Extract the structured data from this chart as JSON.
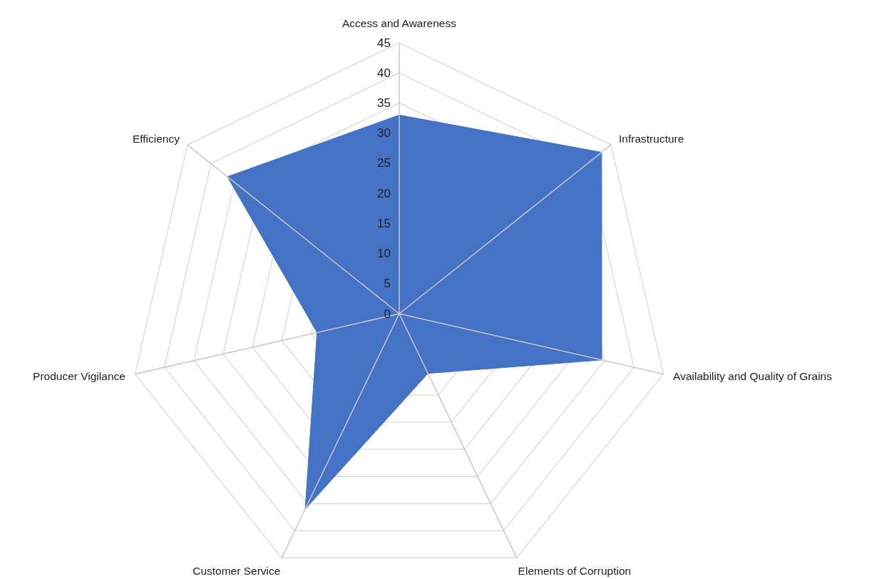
{
  "chart_data": {
    "type": "radar",
    "categories": [
      "Access and Awareness",
      "Infrastructure",
      "Availability and Quality of Grains",
      "Elements of Corruption",
      "Customer Service",
      "Producer Vigilance",
      "Efficiency"
    ],
    "series": [
      {
        "color": "#4472c4",
        "values": [
          33,
          43,
          34.5,
          11,
          36,
          14,
          36.5
        ]
      }
    ],
    "ylim": [
      0,
      45
    ],
    "yticks": [
      0,
      5,
      10,
      15,
      20,
      25,
      30,
      35,
      40,
      45
    ],
    "grid": true
  }
}
